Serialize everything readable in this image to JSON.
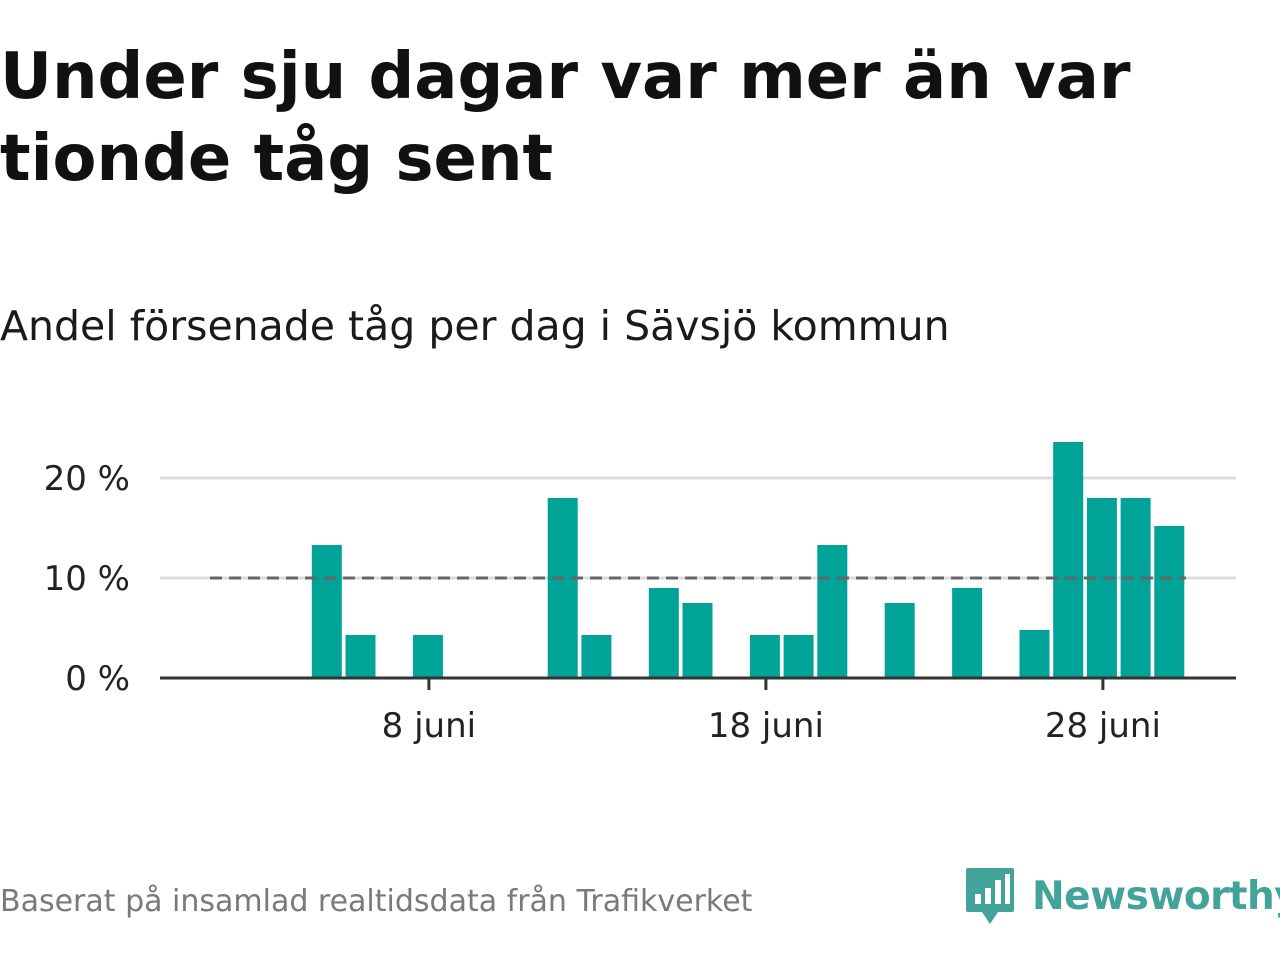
{
  "title": "Under sju dagar var mer än var tionde tåg sent",
  "subtitle": "Andel försenade tåg per dag i Sävsjö kommun",
  "footer": "Baserat på insamlad realtidsdata från Trafikverket",
  "brand": {
    "name": "Newsworthy",
    "icon": "newsworthy-logo-icon",
    "color": "#42a39b"
  },
  "colors": {
    "bar": "#00a398",
    "reference_line": "#666666",
    "grid": "#dcdcdc",
    "axis": "#333333"
  },
  "chart_data": {
    "type": "bar",
    "x_unit": "day of June",
    "x": [
      1,
      2,
      3,
      4,
      5,
      6,
      7,
      8,
      9,
      10,
      11,
      12,
      13,
      14,
      15,
      16,
      17,
      18,
      19,
      20,
      21,
      22,
      23,
      24,
      25,
      26,
      27,
      28,
      29,
      30
    ],
    "values": [
      0,
      0,
      0,
      0,
      13.3,
      4.3,
      0,
      4.3,
      0,
      0,
      0,
      18,
      4.3,
      0,
      9,
      7.5,
      0,
      4.3,
      4.3,
      13.3,
      0,
      7.5,
      0,
      9,
      0,
      4.8,
      23.6,
      18,
      18,
      15.2
    ],
    "y_ticks": [
      0,
      10,
      20
    ],
    "y_tick_labels": [
      "0 %",
      "10 %",
      "20 %"
    ],
    "ylim": [
      0,
      24
    ],
    "x_ticks": [
      8,
      18,
      28
    ],
    "x_tick_labels": [
      "8 juni",
      "18 juni",
      "28 juni"
    ],
    "reference_line": 10,
    "grid": true,
    "xlabel": "",
    "ylabel": ""
  }
}
